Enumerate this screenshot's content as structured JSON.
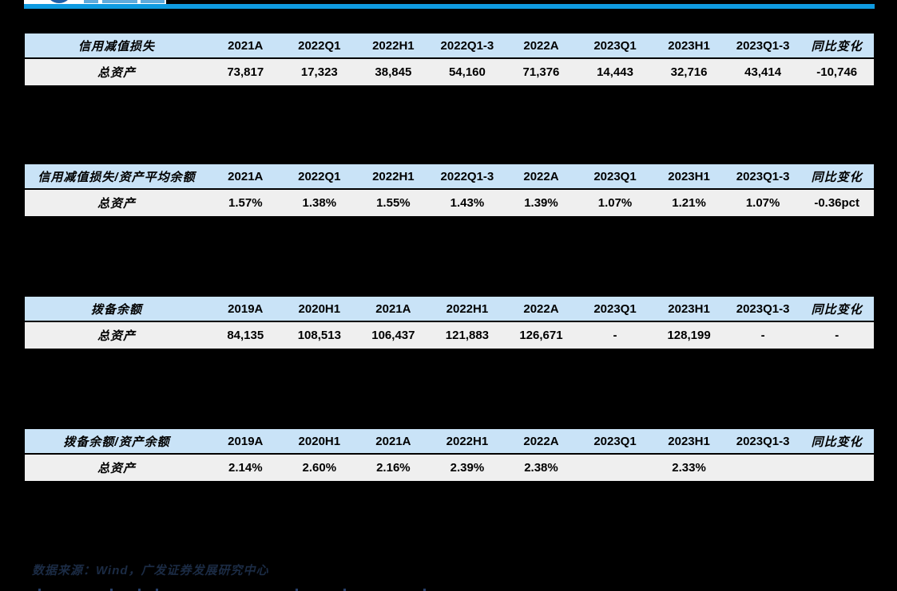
{
  "brand": {
    "line_color": "#0F9BE1",
    "logo_name": "gf-securities-logo"
  },
  "colors": {
    "page_background": "#000000",
    "table_header_fill": "#C9E3F7",
    "table_row_fill": "#EFEFEF",
    "table_border": "#000000",
    "source_text_color": "#1B2B44"
  },
  "tables": [
    {
      "label": "信用减值损失",
      "columns": [
        "2021A",
        "2022Q1",
        "2022H1",
        "2022Q1-3",
        "2022A",
        "2023Q1",
        "2023H1",
        "2023Q1-3",
        "同比变化"
      ],
      "rows": [
        {
          "name": "总资产",
          "values": [
            "73,817",
            "17,323",
            "38,845",
            "54,160",
            "71,376",
            "14,443",
            "32,716",
            "43,414",
            "-10,746"
          ]
        }
      ]
    },
    {
      "label": "信用减值损失/资产平均余额",
      "columns": [
        "2021A",
        "2022Q1",
        "2022H1",
        "2022Q1-3",
        "2022A",
        "2023Q1",
        "2023H1",
        "2023Q1-3",
        "同比变化"
      ],
      "rows": [
        {
          "name": "总资产",
          "values": [
            "1.57%",
            "1.38%",
            "1.55%",
            "1.43%",
            "1.39%",
            "1.07%",
            "1.21%",
            "1.07%",
            "-0.36pct"
          ]
        }
      ]
    },
    {
      "label": "拨备余额",
      "columns": [
        "2019A",
        "2020H1",
        "2021A",
        "2022H1",
        "2022A",
        "2023Q1",
        "2023H1",
        "2023Q1-3",
        "同比变化"
      ],
      "rows": [
        {
          "name": "总资产",
          "values": [
            "84,135",
            "108,513",
            "106,437",
            "121,883",
            "126,671",
            "-",
            "128,199",
            "-",
            "-"
          ]
        }
      ]
    },
    {
      "label": "拨备余额/资产余额",
      "columns": [
        "2019A",
        "2020H1",
        "2021A",
        "2022H1",
        "2022A",
        "2023Q1",
        "2023H1",
        "2023Q1-3",
        "同比变化"
      ],
      "rows": [
        {
          "name": "总资产",
          "values": [
            "2.14%",
            "2.60%",
            "2.16%",
            "2.39%",
            "2.38%",
            "",
            "2.33%",
            "",
            ""
          ]
        }
      ]
    }
  ],
  "footer": {
    "source_text": "数据来源：Wind，广发证券发展研究中心"
  }
}
